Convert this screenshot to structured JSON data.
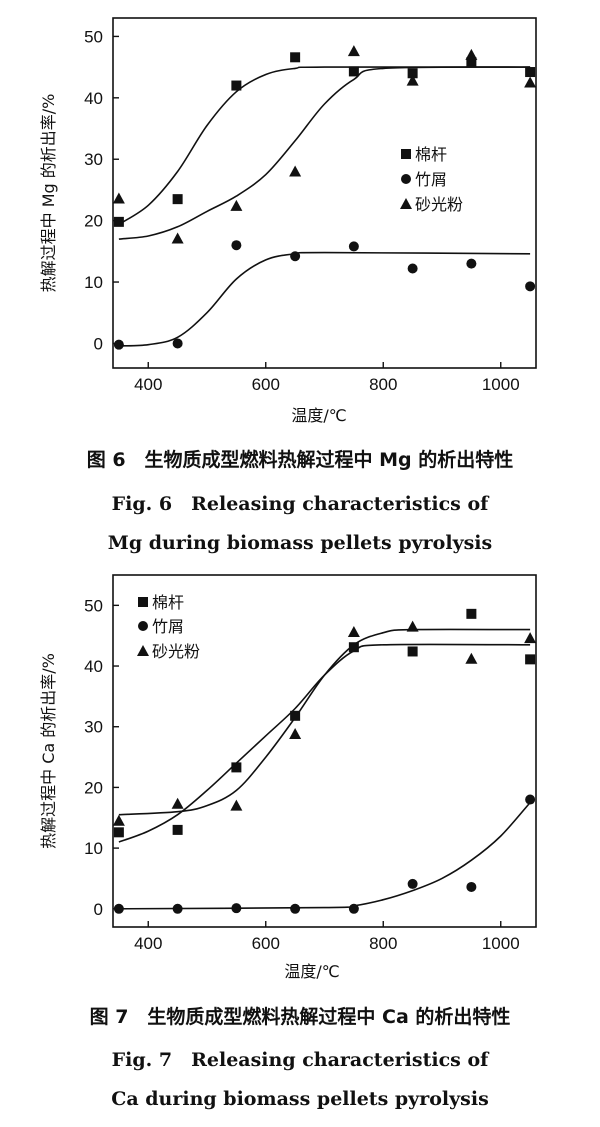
{
  "chart_data": [
    {
      "type": "scatter",
      "ylabel": "热解过程中 Mg 的析出率/%",
      "xlabel": "温度/℃",
      "xlim": [
        340,
        1060
      ],
      "ylim": [
        -4,
        53
      ],
      "x_ticks": [
        400,
        600,
        800,
        1000
      ],
      "y_ticks": [
        0,
        10,
        20,
        30,
        40,
        50
      ],
      "legend_position": "right-center",
      "series": [
        {
          "name": "棉杆",
          "marker": "square",
          "x": [
            350,
            450,
            550,
            650,
            750,
            850,
            950,
            1050
          ],
          "y": [
            19.8,
            23.5,
            42.0,
            46.6,
            44.3,
            44.0,
            45.8,
            44.2
          ],
          "fit": [
            [
              350,
              19.4
            ],
            [
              400,
              22.5
            ],
            [
              450,
              28
            ],
            [
              500,
              35.5
            ],
            [
              550,
              41
            ],
            [
              600,
              43.8
            ],
            [
              650,
              44.8
            ],
            [
              700,
              45
            ],
            [
              1050,
              45
            ]
          ]
        },
        {
          "name": "竹屑",
          "marker": "circle",
          "x": [
            350,
            450,
            550,
            650,
            750,
            850,
            950,
            1050
          ],
          "y": [
            -0.2,
            0.0,
            16.0,
            14.2,
            15.8,
            12.2,
            13.0,
            9.3
          ],
          "fit": [
            [
              350,
              -0.4
            ],
            [
              400,
              -0.2
            ],
            [
              450,
              1
            ],
            [
              500,
              5
            ],
            [
              550,
              10.5
            ],
            [
              600,
              13.6
            ],
            [
              650,
              14.6
            ],
            [
              700,
              14.8
            ],
            [
              1050,
              14.6
            ]
          ]
        },
        {
          "name": "砂光粉",
          "marker": "triangle",
          "x": [
            350,
            450,
            550,
            650,
            750,
            850,
            950,
            1050
          ],
          "y": [
            23.6,
            17.1,
            22.4,
            28.0,
            47.6,
            42.8,
            47.0,
            42.5
          ],
          "fit": [
            [
              350,
              17
            ],
            [
              400,
              17.5
            ],
            [
              450,
              19
            ],
            [
              500,
              21.5
            ],
            [
              550,
              24
            ],
            [
              600,
              27.5
            ],
            [
              650,
              33
            ],
            [
              700,
              39
            ],
            [
              750,
              43
            ],
            [
              800,
              44.8
            ],
            [
              1050,
              45
            ]
          ]
        }
      ],
      "caption_cn": "图 6　生物质成型燃料热解过程中 Mg 的析出特性",
      "caption_en": [
        "Fig. 6　Releasing characteristics of",
        "Mg during biomass pellets pyrolysis"
      ]
    },
    {
      "type": "scatter",
      "ylabel": "热解过程中 Ca 的析出率/%",
      "xlabel": "温度/℃",
      "xlim": [
        340,
        1060
      ],
      "ylim": [
        -3,
        55
      ],
      "x_ticks": [
        400,
        600,
        800,
        1000
      ],
      "y_ticks": [
        0,
        10,
        20,
        30,
        40,
        50
      ],
      "legend_position": "top-left",
      "series": [
        {
          "name": "棉杆",
          "marker": "square",
          "x": [
            350,
            450,
            550,
            650,
            750,
            850,
            950,
            1050
          ],
          "y": [
            12.6,
            13.0,
            23.3,
            31.8,
            43.1,
            42.4,
            48.6,
            41.1
          ],
          "fit": [
            [
              350,
              11
            ],
            [
              400,
              12.8
            ],
            [
              450,
              15.5
            ],
            [
              500,
              19.5
            ],
            [
              550,
              24
            ],
            [
              600,
              28.5
            ],
            [
              650,
              33
            ],
            [
              700,
              38.5
            ],
            [
              750,
              42.5
            ],
            [
              800,
              43.5
            ],
            [
              1050,
              43.5
            ]
          ]
        },
        {
          "name": "竹屑",
          "marker": "circle",
          "x": [
            350,
            450,
            550,
            650,
            750,
            850,
            950,
            1050
          ],
          "y": [
            0.0,
            0.0,
            0.1,
            0.0,
            0.0,
            4.1,
            3.6,
            18.0
          ],
          "fit": [
            [
              350,
              0
            ],
            [
              700,
              0.2
            ],
            [
              750,
              0.5
            ],
            [
              800,
              1.5
            ],
            [
              850,
              3
            ],
            [
              900,
              5
            ],
            [
              950,
              8
            ],
            [
              1000,
              12
            ],
            [
              1050,
              17.5
            ]
          ]
        },
        {
          "name": "砂光粉",
          "marker": "triangle",
          "x": [
            350,
            450,
            550,
            650,
            750,
            850,
            950,
            1050
          ],
          "y": [
            14.5,
            17.3,
            17.0,
            28.8,
            45.6,
            46.5,
            41.2,
            44.6
          ],
          "fit": [
            [
              350,
              15.5
            ],
            [
              450,
              16
            ],
            [
              500,
              17
            ],
            [
              550,
              19.5
            ],
            [
              600,
              25
            ],
            [
              650,
              31.5
            ],
            [
              700,
              38.5
            ],
            [
              750,
              43.5
            ],
            [
              800,
              45.5
            ],
            [
              850,
              46
            ],
            [
              1050,
              46
            ]
          ]
        }
      ],
      "caption_cn": "图 7　生物质成型燃料热解过程中 Ca 的析出特性",
      "caption_en": [
        "Fig. 7　Releasing characteristics of",
        "Ca during biomass pellets pyrolysis"
      ]
    }
  ]
}
